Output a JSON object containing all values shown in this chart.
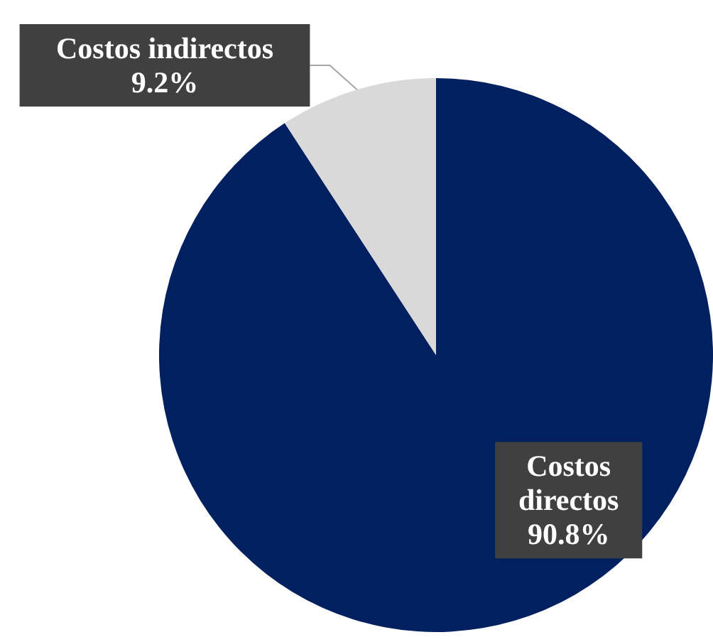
{
  "chart_data": {
    "type": "pie",
    "categories": [
      "Costos directos",
      "Costos indirectos"
    ],
    "values": [
      90.8,
      9.2
    ],
    "colors": [
      "#002060",
      "#d9d9d9"
    ],
    "value_labels": [
      "90.8%",
      "9.2%"
    ]
  }
}
